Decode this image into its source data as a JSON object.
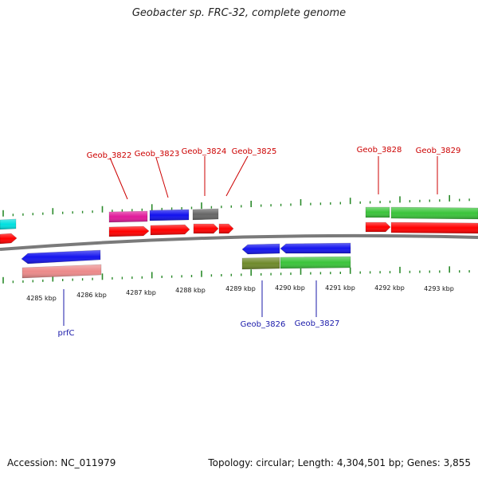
{
  "title": "Geobacter sp. FRC-32, complete genome",
  "footer": {
    "accession": "Accession: NC_011979",
    "summary": "Topology: circular; Length: 4,304,501 bp; Genes: 3,855"
  },
  "kbp_labels": [
    "4285 kbp",
    "4286 kbp",
    "4287 kbp",
    "4288 kbp",
    "4289 kbp",
    "4290 kbp",
    "4291 kbp",
    "4292 kbp",
    "4293 kbp"
  ],
  "gene_labels_forward": [
    "Geob_3822",
    "Geob_3823",
    "Geob_3824",
    "Geob_3825",
    "Geob_3828",
    "Geob_3829"
  ],
  "gene_labels_reverse": [
    "prfC",
    "Geob_3826",
    "Geob_3827"
  ],
  "colors": {
    "forward_label": "#cc0000",
    "reverse_label": "#1a1aaa",
    "tick": "#2a8a2a",
    "backbone": "#7a7a7a",
    "cds_forward": "#ff0000",
    "cds_reverse": "#1515ee",
    "gene_magenta": "#e01a9a",
    "gene_blue": "#1111ee",
    "gene_gray": "#666666",
    "gene_green": "#3ac43a",
    "gene_olive": "#6f8a2a",
    "gene_salmon": "#ec8a8a",
    "gene_cyan": "#00e0e0"
  }
}
